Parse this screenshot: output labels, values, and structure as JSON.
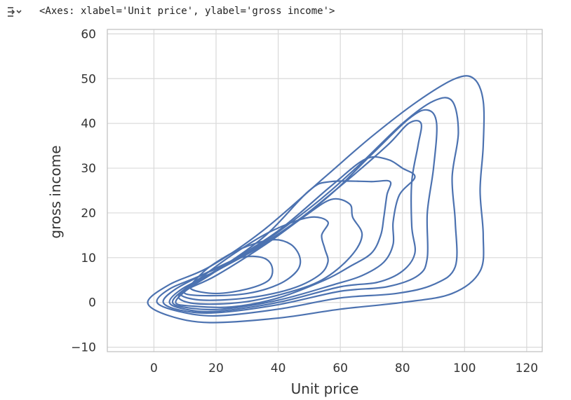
{
  "cell": {
    "output_icon": "output-expand-icon",
    "output_text": "<Axes: xlabel='Unit price', ylabel='gross income'>"
  },
  "colors": {
    "line": "#4c72b0",
    "grid": "#d9d9d9",
    "frame": "#bfbfbf",
    "text": "#333333"
  },
  "chart_data": {
    "type": "line",
    "kind": "kde-contour",
    "xlabel": "Unit price",
    "ylabel": "gross income",
    "xlim": [
      -15,
      125
    ],
    "ylim": [
      -11,
      61
    ],
    "xticks": [
      0,
      20,
      40,
      60,
      80,
      100,
      120
    ],
    "xtick_labels": [
      "0",
      "20",
      "40",
      "60",
      "80",
      "100",
      "120"
    ],
    "yticks": [
      -10,
      0,
      10,
      20,
      30,
      40,
      50,
      60
    ],
    "ytick_labels": [
      "−10",
      "0",
      "10",
      "20",
      "30",
      "40",
      "50",
      "60"
    ],
    "grid": true,
    "series": [
      {
        "points": [
          [
            -2,
            0
          ],
          [
            5,
            -3
          ],
          [
            18,
            -4.5
          ],
          [
            40,
            -3.5
          ],
          [
            60,
            -1.5
          ],
          [
            80,
            0
          ],
          [
            96,
            2
          ],
          [
            105,
            7
          ],
          [
            106,
            15
          ],
          [
            105,
            25
          ],
          [
            106,
            35
          ],
          [
            106,
            45
          ],
          [
            103,
            50
          ],
          [
            97,
            50
          ],
          [
            85,
            45
          ],
          [
            70,
            37
          ],
          [
            55,
            28
          ],
          [
            35,
            16
          ],
          [
            18,
            8
          ],
          [
            5,
            4
          ],
          [
            -2,
            0
          ]
        ]
      },
      {
        "points": [
          [
            1,
            0
          ],
          [
            8,
            -2
          ],
          [
            20,
            -3
          ],
          [
            40,
            -1.5
          ],
          [
            60,
            1
          ],
          [
            78,
            2
          ],
          [
            90,
            4
          ],
          [
            97,
            8
          ],
          [
            97,
            18
          ],
          [
            96,
            28
          ],
          [
            98,
            38
          ],
          [
            96,
            45
          ],
          [
            90,
            45
          ],
          [
            80,
            40
          ],
          [
            65,
            30
          ],
          [
            50,
            21
          ],
          [
            30,
            11
          ],
          [
            15,
            6
          ],
          [
            5,
            3
          ],
          [
            1,
            0
          ]
        ]
      },
      {
        "points": [
          [
            3,
            0
          ],
          [
            9,
            -1.8
          ],
          [
            20,
            -2.3
          ],
          [
            40,
            -0.5
          ],
          [
            60,
            2.5
          ],
          [
            75,
            3.5
          ],
          [
            85,
            6
          ],
          [
            88,
            10
          ],
          [
            88,
            20
          ],
          [
            90,
            30
          ],
          [
            91,
            40
          ],
          [
            88,
            43
          ],
          [
            82,
            41
          ],
          [
            70,
            33
          ],
          [
            55,
            23
          ],
          [
            35,
            13
          ],
          [
            18,
            7
          ],
          [
            7,
            3
          ],
          [
            3,
            0
          ]
        ]
      },
      {
        "points": [
          [
            5,
            0
          ],
          [
            10,
            -1.5
          ],
          [
            20,
            -2
          ],
          [
            40,
            0
          ],
          [
            60,
            3.5
          ],
          [
            72,
            4.5
          ],
          [
            80,
            7
          ],
          [
            84,
            11
          ],
          [
            83,
            17
          ],
          [
            83,
            27
          ],
          [
            85,
            35
          ],
          [
            86,
            40
          ],
          [
            82,
            40
          ],
          [
            75,
            35
          ],
          [
            60,
            26
          ],
          [
            40,
            15
          ],
          [
            20,
            7
          ],
          [
            9,
            3
          ],
          [
            5,
            0
          ]
        ]
      },
      {
        "points": [
          [
            6,
            0
          ],
          [
            11,
            -1.2
          ],
          [
            22,
            -1.5
          ],
          [
            40,
            0.5
          ],
          [
            58,
            4
          ],
          [
            67,
            6
          ],
          [
            74,
            9
          ],
          [
            77,
            13
          ],
          [
            77,
            18
          ],
          [
            79,
            24
          ],
          [
            84,
            28
          ],
          [
            80,
            30
          ],
          [
            75,
            32
          ],
          [
            68,
            32
          ],
          [
            57,
            26
          ],
          [
            40,
            16
          ],
          [
            22,
            8
          ],
          [
            10,
            3
          ],
          [
            6,
            0
          ]
        ]
      },
      {
        "points": [
          [
            7,
            0
          ],
          [
            12,
            -0.8
          ],
          [
            25,
            -1
          ],
          [
            40,
            1
          ],
          [
            55,
            5
          ],
          [
            63,
            8
          ],
          [
            70,
            11
          ],
          [
            73,
            15
          ],
          [
            74,
            19
          ],
          [
            75,
            24
          ],
          [
            76,
            27
          ],
          [
            70,
            27
          ],
          [
            57,
            27
          ],
          [
            50,
            25
          ],
          [
            36,
            15
          ],
          [
            20,
            7
          ],
          [
            11,
            3
          ],
          [
            7,
            0
          ]
        ]
      },
      {
        "points": [
          [
            8,
            1
          ],
          [
            14,
            -0.3
          ],
          [
            28,
            0
          ],
          [
            42,
            2
          ],
          [
            54,
            5
          ],
          [
            63,
            10
          ],
          [
            67,
            15
          ],
          [
            64,
            19
          ],
          [
            63,
            22
          ],
          [
            57,
            23
          ],
          [
            48,
            19
          ],
          [
            36,
            13
          ],
          [
            20,
            6
          ],
          [
            11,
            3
          ],
          [
            8,
            1
          ]
        ]
      },
      {
        "points": [
          [
            9,
            1.5
          ],
          [
            16,
            0.5
          ],
          [
            30,
            1
          ],
          [
            44,
            3
          ],
          [
            53,
            6
          ],
          [
            56,
            9
          ],
          [
            55,
            12
          ],
          [
            54,
            15
          ],
          [
            56,
            18
          ],
          [
            50,
            19
          ],
          [
            38,
            16
          ],
          [
            26,
            11
          ],
          [
            16,
            6
          ],
          [
            10,
            3
          ],
          [
            9,
            1.5
          ]
        ]
      },
      {
        "points": [
          [
            10,
            2
          ],
          [
            18,
            1.5
          ],
          [
            30,
            2
          ],
          [
            40,
            4
          ],
          [
            46,
            7
          ],
          [
            47,
            10
          ],
          [
            44,
            13
          ],
          [
            38,
            14
          ],
          [
            28,
            12
          ],
          [
            18,
            8
          ],
          [
            12,
            4
          ],
          [
            10,
            2
          ]
        ]
      },
      {
        "points": [
          [
            12,
            3
          ],
          [
            20,
            2
          ],
          [
            30,
            3
          ],
          [
            37,
            5
          ],
          [
            38,
            8
          ],
          [
            35,
            10
          ],
          [
            28,
            10
          ],
          [
            20,
            7
          ],
          [
            14,
            5
          ],
          [
            12,
            3
          ]
        ]
      }
    ]
  }
}
